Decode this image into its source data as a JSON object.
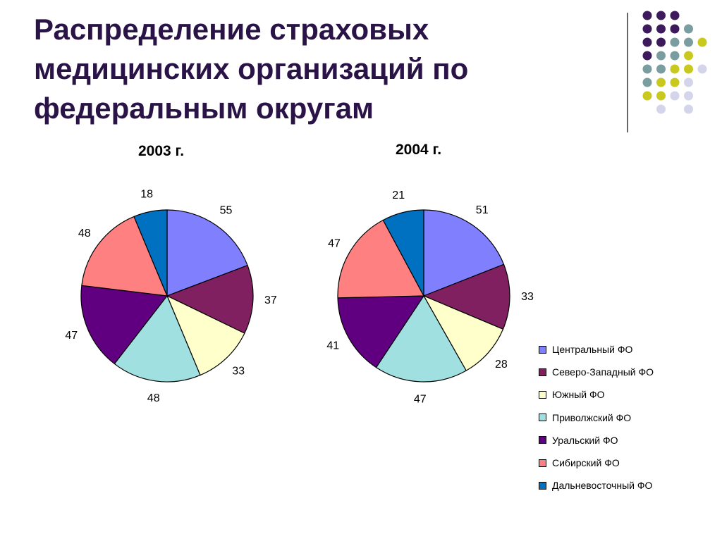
{
  "page_title": "Распределение страховых медицинских организаций по федеральным округам",
  "colors": {
    "title": "#2a1346",
    "series": [
      "#8080ff",
      "#802060",
      "#ffffcc",
      "#a0e0e0",
      "#600080",
      "#ff8080",
      "#0070c0"
    ],
    "dots": [
      "#3c1a5b",
      "#7a9e9f",
      "#c8c81e",
      "#d4d4ea"
    ]
  },
  "chart_data": [
    {
      "type": "pie",
      "title": "2003 г.",
      "categories": [
        "Центральный ФО",
        "Северо-Западный ФО",
        "Южный ФО",
        "Приволжский ФО",
        "Уральский ФО",
        "Сибирский ФО",
        "Дальневосточный ФО"
      ],
      "values": [
        55,
        37,
        33,
        48,
        47,
        48,
        18
      ],
      "data_labels": [
        "55",
        "37",
        "33",
        "48",
        "47",
        "48",
        "18"
      ],
      "start_angle": "12 o'clock",
      "direction": "clockwise"
    },
    {
      "type": "pie",
      "title": "2004 г.",
      "categories": [
        "Центральный ФО",
        "Северо-Западный ФО",
        "Южный ФО",
        "Приволжский ФО",
        "Уральский ФО",
        "Сибирский ФО",
        "Дальневосточный ФО"
      ],
      "values": [
        51,
        33,
        28,
        47,
        41,
        47,
        21
      ],
      "data_labels": [
        "51",
        "33",
        "28",
        "47",
        "41",
        "47",
        "21"
      ],
      "start_angle": "12 o'clock",
      "direction": "clockwise"
    }
  ],
  "legend": {
    "placement": "right",
    "items": [
      "Центральный ФО",
      "Северо-Западный ФО",
      "Южный ФО",
      "Приволжский ФО",
      "Уральский ФО",
      "Сибирский ФО",
      "Дальневосточный ФО"
    ]
  }
}
